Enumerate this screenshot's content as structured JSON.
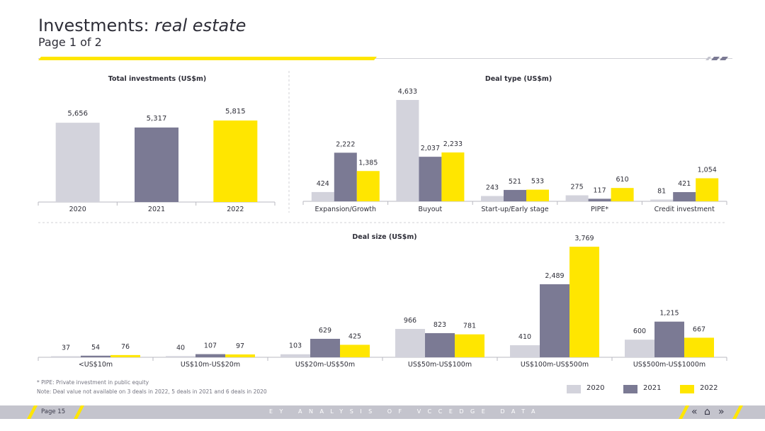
{
  "header": {
    "title_main": "Investments: ",
    "title_italic": "real estate",
    "subtitle": "Page 1 of 2"
  },
  "colors": {
    "2020": "#d3d3dc",
    "2021": "#7b7a94",
    "2022": "#ffe600",
    "axis": "#b8b8c0",
    "text": "#2e2e38"
  },
  "chart_data": [
    {
      "type": "bar",
      "title": "Total investments (US$m)",
      "categories": [
        "2020",
        "2021",
        "2022"
      ],
      "values": [
        5656,
        5317,
        5815
      ],
      "value_labels": [
        "5,656",
        "5,317",
        "5,815"
      ],
      "ylim": [
        0,
        6000
      ]
    },
    {
      "type": "bar",
      "title": "Deal type (US$m)",
      "categories": [
        "Expansion/Growth",
        "Buyout",
        "Start-up/Early stage",
        "PIPE*",
        "Credit investment"
      ],
      "series": [
        {
          "name": "2020",
          "values": [
            424,
            4633,
            243,
            275,
            81
          ],
          "labels": [
            "424",
            "4,633",
            "243",
            "275",
            "81"
          ]
        },
        {
          "name": "2021",
          "values": [
            2222,
            2037,
            521,
            117,
            421
          ],
          "labels": [
            "2,222",
            "2,037",
            "521",
            "117",
            "421"
          ]
        },
        {
          "name": "2022",
          "values": [
            1385,
            2233,
            533,
            610,
            1054
          ],
          "labels": [
            "1,385",
            "2,233",
            "533",
            "610",
            "1,054"
          ]
        }
      ],
      "ylim": [
        0,
        5000
      ]
    },
    {
      "type": "bar",
      "title": "Deal size (US$m)",
      "categories": [
        "<US$10m",
        "US$10m-US$20m",
        "US$20m-US$50m",
        "US$50m-US$100m",
        "US$100m-US$500m",
        "US$500m-US$1000m"
      ],
      "series": [
        {
          "name": "2020",
          "values": [
            37,
            40,
            103,
            966,
            410,
            600
          ],
          "labels": [
            "37",
            "40",
            "103",
            "966",
            "410",
            "600"
          ]
        },
        {
          "name": "2021",
          "values": [
            54,
            107,
            629,
            823,
            2489,
            1215
          ],
          "labels": [
            "54",
            "107",
            "629",
            "823",
            "2,489",
            "1,215"
          ]
        },
        {
          "name": "2022",
          "values": [
            76,
            97,
            425,
            781,
            3769,
            667
          ],
          "labels": [
            "76",
            "97",
            "425",
            "781",
            "3,769",
            "667"
          ]
        }
      ],
      "ylim": [
        0,
        4000
      ]
    }
  ],
  "legend": [
    {
      "name": "2020",
      "color": "#d3d3dc"
    },
    {
      "name": "2021",
      "color": "#7b7a94"
    },
    {
      "name": "2022",
      "color": "#ffe600"
    }
  ],
  "footnotes": {
    "pipe": "* PIPE: Private investment in public equity",
    "note": "Note: Deal value not available on 3 deals in 2022, 5 deals in 2021 and 6 deals in 2020"
  },
  "footer": {
    "page": "Page 15",
    "center": "EY ANALYSIS OF VCCEDGE DATA",
    "nav_prev": "«",
    "nav_home": "⌂",
    "nav_next": "»"
  }
}
